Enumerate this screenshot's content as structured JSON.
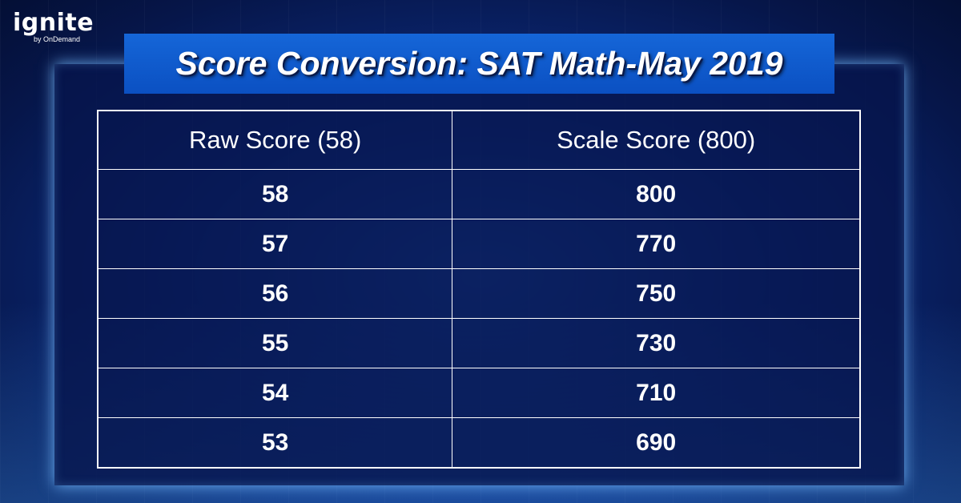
{
  "logo": {
    "word": "ignite",
    "tagline": "by OnDemand"
  },
  "title": "Score Conversion: SAT Math-May 2019",
  "table": {
    "headers": [
      "Raw Score (58)",
      "Scale Score (800)"
    ],
    "rows": [
      [
        "58",
        "800"
      ],
      [
        "57",
        "770"
      ],
      [
        "56",
        "750"
      ],
      [
        "55",
        "730"
      ],
      [
        "54",
        "710"
      ],
      [
        "53",
        "690"
      ]
    ]
  }
}
